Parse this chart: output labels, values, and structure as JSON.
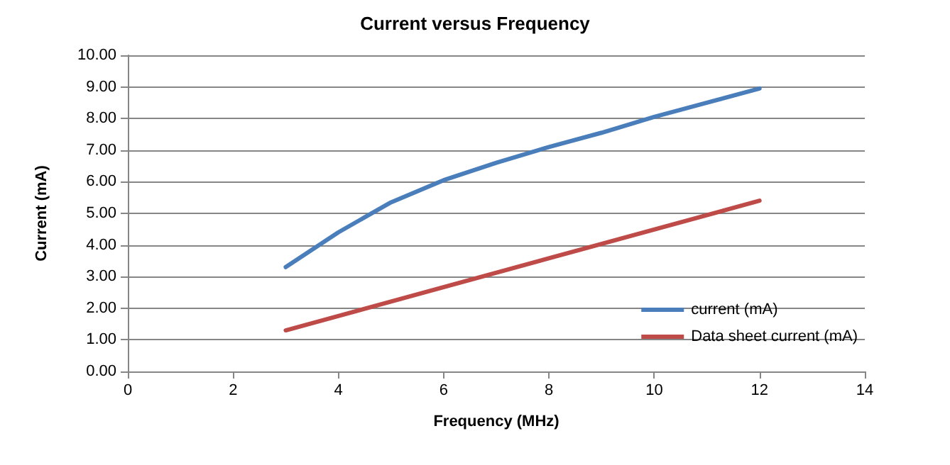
{
  "chart_data": {
    "type": "line",
    "title": "Current versus Frequency",
    "xlabel": "Frequency (MHz)",
    "ylabel": "Current (mA)",
    "series": [
      {
        "name": "current (mA)",
        "color": "#4a7ebb",
        "x": [
          3,
          4,
          5,
          6,
          7,
          8,
          9,
          10,
          11,
          12
        ],
        "values": [
          3.3,
          4.4,
          5.35,
          6.05,
          6.6,
          7.1,
          7.55,
          8.05,
          8.5,
          8.95
        ]
      },
      {
        "name": "Data sheet current (mA)",
        "color": "#be4b48",
        "x": [
          3,
          12
        ],
        "values": [
          1.3,
          5.4
        ]
      }
    ],
    "xlim": [
      0,
      14
    ],
    "xticks": [
      0,
      2,
      4,
      6,
      8,
      10,
      12,
      14
    ],
    "ylim": [
      0,
      10
    ],
    "yticks": [
      {
        "value": 0,
        "label": "0.00"
      },
      {
        "value": 1,
        "label": "1.00"
      },
      {
        "value": 2,
        "label": "2.00"
      },
      {
        "value": 3,
        "label": "3.00"
      },
      {
        "value": 4,
        "label": "4.00"
      },
      {
        "value": 5,
        "label": "5.00"
      },
      {
        "value": 6,
        "label": "6.00"
      },
      {
        "value": 7,
        "label": "7.00"
      },
      {
        "value": 8,
        "label": "8.00"
      },
      {
        "value": 9,
        "label": "9.00"
      },
      {
        "value": 10,
        "label": "10.00"
      }
    ],
    "grid": "y",
    "legend": "bottom right",
    "marker": "none",
    "line_style": "solid"
  }
}
